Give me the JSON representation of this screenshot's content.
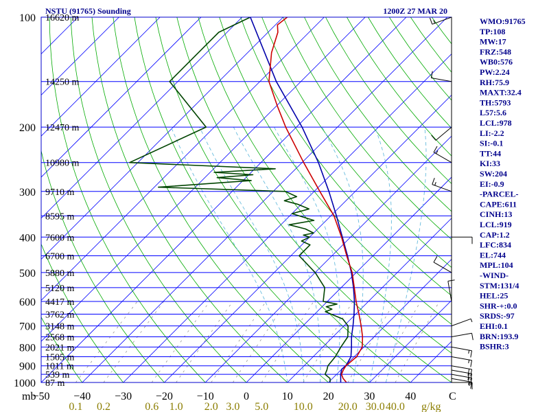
{
  "chart_data": {
    "type": "skew-t sounding",
    "station_title": "NSTU (91765) Sounding",
    "valid_time": "1200Z 27 MAR 20",
    "pressure_axis_label": "mb",
    "pressure_ticks": [
      100,
      200,
      300,
      400,
      500,
      600,
      700,
      800,
      900,
      1000
    ],
    "pressure_range": [
      100,
      1000
    ],
    "temperature_axis_label": "C",
    "temperature_ticks": [
      -50,
      -40,
      -30,
      -20,
      -10,
      0,
      10,
      20,
      30,
      40
    ],
    "temperature_range_at_1000mb": [
      -50,
      50
    ],
    "mixing_ratio_label": "g/kg",
    "mixing_ratio_labels": [
      "0.1",
      "0.2",
      "0.6",
      "1.0",
      "2.0",
      "3.0",
      "5.0",
      "10.0",
      "20.0",
      "30.0",
      "40.0"
    ],
    "mixing_ratio_values": [
      0.1,
      0.2,
      0.6,
      1.0,
      2.0,
      3.0,
      5.0,
      10.0,
      20.0,
      30.0,
      40.0
    ],
    "height_levels": [
      {
        "p": 100,
        "label": "16620 m"
      },
      {
        "p": 150,
        "label": "14250 m"
      },
      {
        "p": 200,
        "label": "12470 m"
      },
      {
        "p": 250,
        "label": "10980 m"
      },
      {
        "p": 300,
        "label": "9710 m"
      },
      {
        "p": 350,
        "label": "8595 m"
      },
      {
        "p": 400,
        "label": "7600 m"
      },
      {
        "p": 450,
        "label": "6700 m"
      },
      {
        "p": 500,
        "label": "5880 m"
      },
      {
        "p": 550,
        "label": "5120 m"
      },
      {
        "p": 600,
        "label": "4417 m"
      },
      {
        "p": 650,
        "label": "3762 m"
      },
      {
        "p": 700,
        "label": "3148 m"
      },
      {
        "p": 750,
        "label": "2568 m"
      },
      {
        "p": 800,
        "label": "2021 m"
      },
      {
        "p": 850,
        "label": "1505 m"
      },
      {
        "p": 900,
        "label": "1011 m"
      },
      {
        "p": 950,
        "label": "539 m"
      },
      {
        "p": 1000,
        "label": "87 m"
      }
    ],
    "temperature_profile": [
      [
        1005,
        24.8
      ],
      [
        1000,
        24.4
      ],
      [
        975,
        22.6
      ],
      [
        950,
        21.2
      ],
      [
        925,
        20.6
      ],
      [
        900,
        20.2
      ],
      [
        850,
        20.6
      ],
      [
        800,
        19.6
      ],
      [
        750,
        17.2
      ],
      [
        700,
        14.2
      ],
      [
        650,
        10.8
      ],
      [
        600,
        7.0
      ],
      [
        550,
        3.2
      ],
      [
        500,
        -1.0
      ],
      [
        450,
        -6.4
      ],
      [
        400,
        -12.2
      ],
      [
        350,
        -19.2
      ],
      [
        300,
        -28.6
      ],
      [
        250,
        -39.6
      ],
      [
        200,
        -52.6
      ],
      [
        175,
        -59.8
      ],
      [
        150,
        -67.8
      ],
      [
        125,
        -74.2
      ],
      [
        110,
        -77.6
      ],
      [
        105,
        -79.5
      ],
      [
        100,
        -79.0
      ]
    ],
    "dewpoint_profile": [
      [
        1005,
        20.8
      ],
      [
        1000,
        20.4
      ],
      [
        975,
        19.4
      ],
      [
        950,
        17.2
      ],
      [
        925,
        16.6
      ],
      [
        900,
        15.8
      ],
      [
        850,
        15.4
      ],
      [
        800,
        14.4
      ],
      [
        750,
        13.6
      ],
      [
        700,
        11.0
      ],
      [
        670,
        8.0
      ],
      [
        650,
        4.0
      ],
      [
        640,
        2.0
      ],
      [
        630,
        3.0
      ],
      [
        620,
        1.0
      ],
      [
        610,
        3.0
      ],
      [
        600,
        -1.0
      ],
      [
        550,
        -4.0
      ],
      [
        500,
        -10.0
      ],
      [
        450,
        -18.0
      ],
      [
        420,
        -18.0
      ],
      [
        410,
        -21.0
      ],
      [
        400,
        -20.0
      ],
      [
        395,
        -22.0
      ],
      [
        390,
        -20.0
      ],
      [
        380,
        -23.0
      ],
      [
        370,
        -28.0
      ],
      [
        360,
        -23.0
      ],
      [
        345,
        -30.0
      ],
      [
        335,
        -27.0
      ],
      [
        325,
        -31.0
      ],
      [
        318,
        -35.0
      ],
      [
        310,
        -33.0
      ],
      [
        300,
        -37.0
      ],
      [
        292,
        -69.0
      ],
      [
        280,
        -48.0
      ],
      [
        275,
        -57.0
      ],
      [
        270,
        -49.0
      ],
      [
        266,
        -59.0
      ],
      [
        260,
        -45.0
      ],
      [
        250,
        -82.0
      ],
      [
        200,
        -72.0
      ],
      [
        150,
        -92.0
      ],
      [
        120,
        -92.0
      ],
      [
        110,
        -92.0
      ],
      [
        100,
        -88.0
      ]
    ],
    "parcel_profile": [
      [
        1000,
        23.0
      ],
      [
        950,
        21.0
      ],
      [
        919,
        20.0
      ],
      [
        900,
        20.2
      ],
      [
        850,
        19.2
      ],
      [
        800,
        17.0
      ],
      [
        750,
        14.5
      ],
      [
        700,
        12.2
      ],
      [
        650,
        9.6
      ],
      [
        600,
        6.6
      ],
      [
        550,
        3.0
      ],
      [
        500,
        -1.2
      ],
      [
        450,
        -6.2
      ],
      [
        400,
        -12.0
      ],
      [
        350,
        -18.6
      ],
      [
        300,
        -26.4
      ],
      [
        250,
        -36.0
      ],
      [
        200,
        -48.6
      ],
      [
        150,
        -66.0
      ],
      [
        100,
        -88.0
      ]
    ],
    "wind_barbs": [
      {
        "p": 1000,
        "dir": 90,
        "kt": 15
      },
      {
        "p": 975,
        "dir": 100,
        "kt": 15
      },
      {
        "p": 950,
        "dir": 100,
        "kt": 15
      },
      {
        "p": 925,
        "dir": 100,
        "kt": 20
      },
      {
        "p": 900,
        "dir": 100,
        "kt": 20
      },
      {
        "p": 850,
        "dir": 100,
        "kt": 15
      },
      {
        "p": 800,
        "dir": 100,
        "kt": 15
      },
      {
        "p": 750,
        "dir": 80,
        "kt": 10
      },
      {
        "p": 700,
        "dir": 70,
        "kt": 5
      },
      {
        "p": 600,
        "dir": 350,
        "kt": 10
      },
      {
        "p": 500,
        "dir": 300,
        "kt": 10
      },
      {
        "p": 400,
        "dir": 90,
        "kt": 10
      },
      {
        "p": 300,
        "dir": 290,
        "kt": 15
      },
      {
        "p": 250,
        "dir": 300,
        "kt": 15
      },
      {
        "p": 200,
        "dir": 230,
        "kt": 10
      },
      {
        "p": 150,
        "dir": 280,
        "kt": 10
      },
      {
        "p": 100,
        "dir": 250,
        "kt": 15
      }
    ],
    "indices": [
      "WMO:91765",
      "TP:108",
      "MW:17",
      "FRZ:548",
      "WB0:576",
      "PW:2.24",
      "RH:75.9",
      "MAXT:32.4",
      "TH:5793",
      "L57:5.6",
      "LCL:978",
      "LI:-2.2",
      "SI:-0.1",
      "TT:44",
      "KI:33",
      "SW:204",
      "EI:-0.9",
      "-PARCEL-",
      "CAPE:611",
      "CINH:13",
      "LCL:919",
      "CAP:1.2",
      "LFC:834",
      "EL:744",
      "MPL:104",
      "-WIND-",
      "STM:131/4",
      "HEL:25",
      "SHR-+:0.0",
      "SRDS:-97",
      "EHI:0.1",
      "BRN:193.9",
      "BSHR:3"
    ],
    "colors": {
      "isobar": "#0000ff",
      "isotherm": "#0000ff",
      "dry_adiabat": "#00aa00",
      "moist_adiabat": "#66bbdd",
      "mixing_ratio": "#888888",
      "temperature": "#cc0000",
      "dewpoint": "#004400",
      "parcel": "#0000aa",
      "frame": "#0000cc"
    }
  }
}
